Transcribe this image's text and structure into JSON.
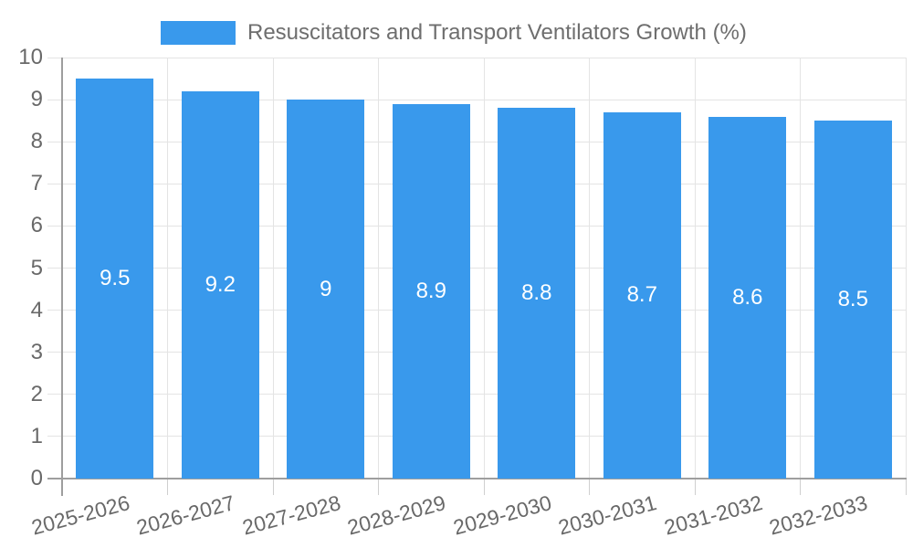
{
  "legend": {
    "label": "Resuscitators and Transport Ventilators Growth (%)"
  },
  "colors": {
    "bar": "#3999EC",
    "bar_label": "#FFFFFF",
    "axis_text": "#696969",
    "legend_text": "#6E6E6E",
    "gridline": "#E4E4E4",
    "tick": "#CFCFCF",
    "axis_line": "#9E9E9E",
    "background": "#FFFFFF"
  },
  "chart_data": {
    "type": "bar",
    "title": "Resuscitators and Transport Ventilators Growth (%)",
    "legend_position": "top",
    "categories": [
      "2025-2026",
      "2026-2027",
      "2027-2028",
      "2028-2029",
      "2029-2030",
      "2030-2031",
      "2031-2032",
      "2032-2033"
    ],
    "series": [
      {
        "name": "Resuscitators and Transport Ventilators Growth (%)",
        "values": [
          9.5,
          9.2,
          9,
          8.9,
          8.8,
          8.7,
          8.6,
          8.5
        ],
        "value_labels": [
          "9.5",
          "9.2",
          "9",
          "8.9",
          "8.8",
          "8.7",
          "8.6",
          "8.5"
        ]
      }
    ],
    "xlabel": "",
    "ylabel": "",
    "ylim": [
      0,
      10
    ],
    "yticks": [
      0,
      1,
      2,
      3,
      4,
      5,
      6,
      7,
      8,
      9,
      10
    ],
    "grid": true,
    "bar_label_position": "center",
    "x_label_rotation_deg": -15
  }
}
